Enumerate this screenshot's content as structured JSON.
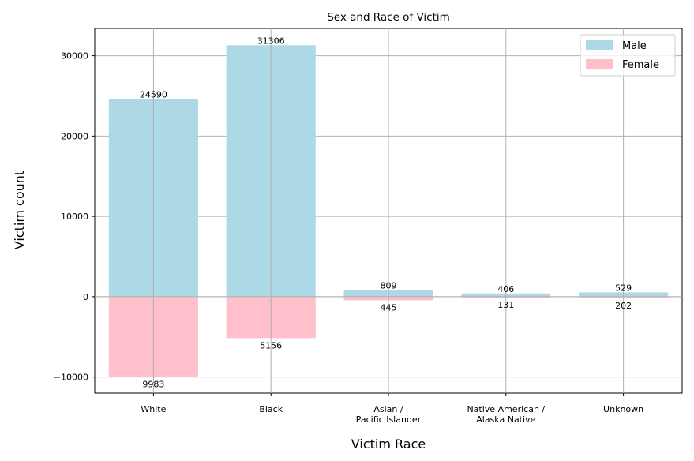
{
  "chart_data": {
    "type": "bar",
    "title": "Sex and Race of Victim",
    "xlabel": "Victim Race",
    "ylabel": "Victim count",
    "categories": [
      [
        "White"
      ],
      [
        "Black"
      ],
      [
        "Asian /",
        "Pacific Islander"
      ],
      [
        "Native American /",
        "Alaska Native"
      ],
      [
        "Unknown"
      ]
    ],
    "series": [
      {
        "name": "Male",
        "color": "#add8e6",
        "values": [
          24590,
          31306,
          809,
          406,
          529
        ],
        "direction": "up"
      },
      {
        "name": "Female",
        "color": "#ffc0cb",
        "values": [
          9983,
          5156,
          445,
          131,
          202
        ],
        "direction": "down"
      }
    ],
    "ylim": [
      -12000,
      33400
    ],
    "yticks": [
      -10000,
      0,
      10000,
      20000,
      30000
    ],
    "ytick_labels": [
      "−10000",
      "0",
      "10000",
      "20000",
      "30000"
    ],
    "grid": true,
    "legend_position": "top-right"
  }
}
